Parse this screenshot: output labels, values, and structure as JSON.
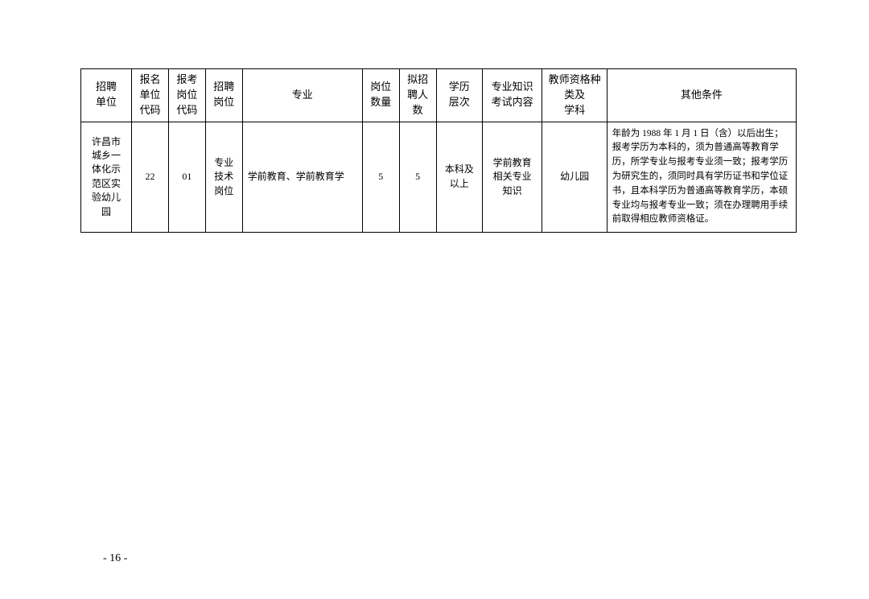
{
  "table": {
    "columns": [
      "招聘\n单位",
      "报名\n单位\n代码",
      "报考\n岗位\n代码",
      "招聘\n岗位",
      "专业",
      "岗位\n数量",
      "拟招\n聘人\n数",
      "学历\n层次",
      "专业知识\n考试内容",
      "教师资格种\n类及\n学科",
      "其他条件"
    ],
    "row": {
      "unit": "许昌市\n城乡一\n体化示\n范区实\n验幼儿\n园",
      "unit_code": "22",
      "post_code": "01",
      "post_type": "专业\n技术\n岗位",
      "major": "学前教育、学前教育学",
      "post_count": "5",
      "plan_count": "5",
      "edu": "本科及\n以上",
      "exam_content": "学前教育\n相关专业\n知识",
      "qualification": "幼儿园",
      "other": "年龄为 1988 年 1 月 1 日（含）以后出生；报考学历为本科的，须为普通高等教育学历，所学专业与报考专业须一致；报考学历为研究生的，须同时具有学历证书和学位证书，且本科学历为普通高等教育学历，本硕专业均与报考专业一致；须在办理聘用手续前取得相应教师资格证。"
    }
  },
  "page_number": "- 16 -"
}
